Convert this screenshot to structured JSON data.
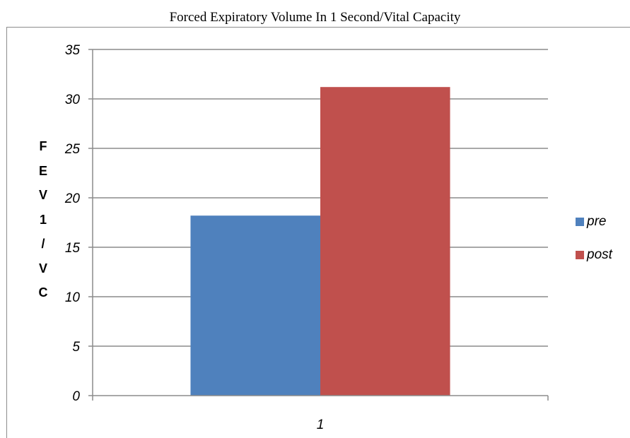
{
  "chart_data": {
    "type": "bar",
    "title": "Forced Expiratory Volume In 1 Second/Vital Capacity",
    "xlabel": "",
    "ylabel": "FEV1/VC",
    "categories": [
      "1"
    ],
    "series": [
      {
        "name": "pre",
        "values": [
          18.2
        ],
        "color": "#4f81bd"
      },
      {
        "name": "post",
        "values": [
          31.2
        ],
        "color": "#c0504d"
      }
    ],
    "ylim": [
      0,
      35
    ],
    "yticks": [
      "0",
      "5",
      "10",
      "15",
      "20",
      "25",
      "30",
      "35"
    ],
    "grid": true,
    "legend": "right"
  }
}
